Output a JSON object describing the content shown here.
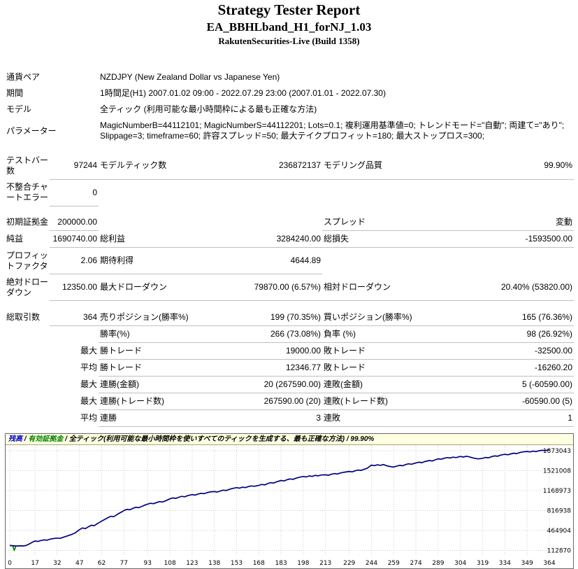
{
  "header": {
    "title": "Strategy Tester Report",
    "ea_name": "EA_BBHLband_H1_forNJ_1.03",
    "server_build": "RakutenSecurities-Live (Build 1358)"
  },
  "info": {
    "symbol": {
      "label": "通貨ペア",
      "value": "NZDJPY (New Zealand Dollar vs Japanese Yen)"
    },
    "period": {
      "label": "期間",
      "value": "1時間足(H1) 2007.01.02 09:00 - 2022.07.29 23:00 (2007.01.01 - 2022.07.30)"
    },
    "model": {
      "label": "モデル",
      "value": "全ティック (利用可能な最小時間枠による最も正確な方法)"
    },
    "parameters": {
      "label": "パラメーター",
      "value": "MagicNumberB=44112101; MagicNumberS=44112201; Lots=0.1; 複利運用基準値=0; トレンドモード=\"自動\"; 両建て=\"あり\"; Slippage=3; timeframe=60; 許容スプレッド=50; 最大テイクプロフィット=180; 最大ストップロス=300;"
    }
  },
  "stats": {
    "bars": {
      "label": "テストバー数",
      "value": "97244"
    },
    "ticks": {
      "label": "モデルティック数",
      "value": "236872137"
    },
    "quality": {
      "label": "モデリング品質",
      "value": "99.90%"
    },
    "mismatch": {
      "label": "不整合チャートエラー",
      "value": "0"
    },
    "deposit": {
      "label": "初期証拠金",
      "value": "200000.00"
    },
    "spread": {
      "label": "スプレッド",
      "value": "変動"
    },
    "net_profit": {
      "label": "純益",
      "value": "1690740.00"
    },
    "gross_profit": {
      "label": "総利益",
      "value": "3284240.00"
    },
    "gross_loss": {
      "label": "総損失",
      "value": "-1593500.00"
    },
    "profit_factor": {
      "label": "プロフィットファクタ",
      "value": "2.06"
    },
    "expected_payoff": {
      "label": "期待利得",
      "value": "4644.89"
    },
    "absolute_drawdown": {
      "label": "絶対ドローダウン",
      "value": "12350.00"
    },
    "maximal_drawdown": {
      "label": "最大ドローダウン",
      "value": "79870.00 (6.57%)"
    },
    "relative_drawdown": {
      "label": "相対ドローダウン",
      "value": "20.40% (53820.00)"
    },
    "total_trades": {
      "label": "総取引数",
      "value": "364"
    },
    "short_positions": {
      "label": "売りポジション(勝率%)",
      "value": "199 (70.35%)"
    },
    "long_positions": {
      "label": "買いポジション(勝率%)",
      "value": "165 (76.36%)"
    },
    "profit_trades": {
      "label": "勝率(%)",
      "value": "266 (73.08%)"
    },
    "loss_trades": {
      "label": "負率 (%)",
      "value": "98 (26.92%)"
    },
    "largest_label": "最大",
    "average_label": "平均",
    "largest_profit_trade": {
      "label": "勝トレード",
      "value": "19000.00"
    },
    "largest_loss_trade": {
      "label": "敗トレード",
      "value": "-32500.00"
    },
    "average_profit_trade": {
      "label": "勝トレード",
      "value": "12346.77"
    },
    "average_loss_trade": {
      "label": "敗トレード",
      "value": "-16260.20"
    },
    "max_consecutive_wins_money": {
      "label": "連勝(金額)",
      "value": "20 (267590.00)"
    },
    "max_consecutive_losses_money": {
      "label": "連敗(金額)",
      "value": "5 (-60590.00)"
    },
    "max_consecutive_wins_count": {
      "label": "連勝(トレード数)",
      "value": "267590.00 (20)"
    },
    "max_consecutive_losses_count": {
      "label": "連敗(トレード数)",
      "value": "-60590.00 (5)"
    },
    "avg_consecutive_wins": {
      "label": "連勝",
      "value": "3"
    },
    "avg_consecutive_losses": {
      "label": "連敗",
      "value": "1"
    }
  },
  "chart_data": {
    "type": "line",
    "legend": {
      "balance_label": "残高",
      "equity_label": "有効証拠金",
      "model_text": "全ティック(利用可能な最小時間枠を使いすべてのティックを生成する、最も正確な方法)",
      "quality": "99.90%",
      "separator": " / "
    },
    "xlim": [
      0,
      364
    ],
    "ylim": [
      112870,
      1873043
    ],
    "x_ticks": [
      0,
      17,
      32,
      47,
      62,
      77,
      93,
      108,
      123,
      138,
      153,
      168,
      183,
      198,
      213,
      229,
      244,
      259,
      274,
      289,
      304,
      319,
      334,
      349,
      364
    ],
    "y_ticks": [
      1873043,
      1521008,
      1168973,
      816938,
      464904,
      112870
    ],
    "grid_on": true,
    "grid_color": "#cdcdcd",
    "header_bg": "#ffffe1",
    "series": [
      {
        "id": "equity",
        "name": "有効証拠金",
        "color": "#008000",
        "points": [
          [
            0,
            200000
          ],
          [
            2,
            195000
          ],
          [
            3,
            112870
          ],
          [
            4,
            190000
          ],
          [
            6,
            196000
          ],
          [
            8,
            192000
          ]
        ]
      },
      {
        "id": "balance",
        "name": "残高",
        "color": "#000080",
        "points": [
          [
            0,
            200000
          ],
          [
            3,
            195000
          ],
          [
            5,
            190000
          ],
          [
            7,
            197000
          ],
          [
            9,
            192000
          ],
          [
            11,
            200000
          ],
          [
            13,
            225000
          ],
          [
            15,
            255000
          ],
          [
            17,
            280000
          ],
          [
            19,
            272000
          ],
          [
            21,
            288000
          ],
          [
            23,
            300000
          ],
          [
            25,
            293000
          ],
          [
            27,
            310000
          ],
          [
            29,
            322000
          ],
          [
            32,
            332000
          ],
          [
            34,
            326000
          ],
          [
            36,
            345000
          ],
          [
            38,
            362000
          ],
          [
            40,
            380000
          ],
          [
            42,
            398000
          ],
          [
            44,
            420000
          ],
          [
            47,
            480000
          ],
          [
            49,
            510000
          ],
          [
            51,
            498000
          ],
          [
            53,
            530000
          ],
          [
            55,
            558000
          ],
          [
            57,
            550000
          ],
          [
            59,
            585000
          ],
          [
            61,
            615000
          ],
          [
            62,
            632000
          ],
          [
            64,
            660000
          ],
          [
            66,
            688000
          ],
          [
            68,
            716000
          ],
          [
            70,
            708000
          ],
          [
            72,
            740000
          ],
          [
            74,
            772000
          ],
          [
            76,
            800000
          ],
          [
            77,
            818000
          ],
          [
            79,
            838000
          ],
          [
            81,
            830000
          ],
          [
            83,
            855000
          ],
          [
            85,
            875000
          ],
          [
            87,
            868000
          ],
          [
            89,
            890000
          ],
          [
            91,
            912000
          ],
          [
            93,
            930000
          ],
          [
            95,
            945000
          ],
          [
            97,
            938000
          ],
          [
            99,
            958000
          ],
          [
            101,
            975000
          ],
          [
            103,
            968000
          ],
          [
            105,
            988000
          ],
          [
            108,
            1025000
          ],
          [
            110,
            1040000
          ],
          [
            112,
            1032000
          ],
          [
            114,
            1052000
          ],
          [
            116,
            1068000
          ],
          [
            118,
            1060000
          ],
          [
            120,
            1080000
          ],
          [
            123,
            1098000
          ],
          [
            125,
            1090000
          ],
          [
            127,
            1108000
          ],
          [
            129,
            1122000
          ],
          [
            131,
            1115000
          ],
          [
            133,
            1132000
          ],
          [
            135,
            1145000
          ],
          [
            138,
            1152000
          ],
          [
            140,
            1144000
          ],
          [
            142,
            1162000
          ],
          [
            144,
            1178000
          ],
          [
            146,
            1170000
          ],
          [
            148,
            1190000
          ],
          [
            150,
            1205000
          ],
          [
            153,
            1222000
          ],
          [
            155,
            1212000
          ],
          [
            157,
            1230000
          ],
          [
            159,
            1222000
          ],
          [
            161,
            1240000
          ],
          [
            163,
            1252000
          ],
          [
            165,
            1245000
          ],
          [
            168,
            1262000
          ],
          [
            170,
            1278000
          ],
          [
            172,
            1270000
          ],
          [
            174,
            1292000
          ],
          [
            176,
            1310000
          ],
          [
            178,
            1302000
          ],
          [
            180,
            1325000
          ],
          [
            183,
            1348000
          ],
          [
            185,
            1340000
          ],
          [
            187,
            1360000
          ],
          [
            189,
            1375000
          ],
          [
            191,
            1368000
          ],
          [
            193,
            1388000
          ],
          [
            195,
            1402000
          ],
          [
            198,
            1418000
          ],
          [
            200,
            1410000
          ],
          [
            202,
            1428000
          ],
          [
            204,
            1420000
          ],
          [
            206,
            1438000
          ],
          [
            208,
            1430000
          ],
          [
            210,
            1445000
          ],
          [
            213,
            1448000
          ],
          [
            215,
            1440000
          ],
          [
            217,
            1458000
          ],
          [
            219,
            1470000
          ],
          [
            221,
            1462000
          ],
          [
            223,
            1480000
          ],
          [
            226,
            1495000
          ],
          [
            229,
            1508000
          ],
          [
            231,
            1500000
          ],
          [
            233,
            1518000
          ],
          [
            235,
            1532000
          ],
          [
            237,
            1525000
          ],
          [
            239,
            1545000
          ],
          [
            241,
            1562000
          ],
          [
            243,
            1600000
          ],
          [
            244,
            1618000
          ],
          [
            246,
            1610000
          ],
          [
            248,
            1625000
          ],
          [
            250,
            1615000
          ],
          [
            252,
            1630000
          ],
          [
            254,
            1610000
          ],
          [
            256,
            1596000
          ],
          [
            259,
            1585000
          ],
          [
            261,
            1600000
          ],
          [
            263,
            1615000
          ],
          [
            265,
            1608000
          ],
          [
            267,
            1628000
          ],
          [
            269,
            1642000
          ],
          [
            271,
            1635000
          ],
          [
            274,
            1658000
          ],
          [
            276,
            1670000
          ],
          [
            278,
            1662000
          ],
          [
            280,
            1682000
          ],
          [
            283,
            1700000
          ],
          [
            285,
            1692000
          ],
          [
            287,
            1712000
          ],
          [
            289,
            1730000
          ],
          [
            291,
            1722000
          ],
          [
            293,
            1740000
          ],
          [
            295,
            1752000
          ],
          [
            297,
            1745000
          ],
          [
            299,
            1760000
          ],
          [
            301,
            1752000
          ],
          [
            304,
            1772000
          ],
          [
            306,
            1762000
          ],
          [
            308,
            1775000
          ],
          [
            310,
            1765000
          ],
          [
            312,
            1748000
          ],
          [
            314,
            1738000
          ],
          [
            316,
            1728000
          ],
          [
            319,
            1740000
          ],
          [
            321,
            1755000
          ],
          [
            323,
            1748000
          ],
          [
            325,
            1768000
          ],
          [
            327,
            1782000
          ],
          [
            329,
            1775000
          ],
          [
            331,
            1795000
          ],
          [
            334,
            1810000
          ],
          [
            336,
            1802000
          ],
          [
            338,
            1818000
          ],
          [
            340,
            1830000
          ],
          [
            342,
            1822000
          ],
          [
            344,
            1840000
          ],
          [
            346,
            1852000
          ],
          [
            349,
            1860000
          ],
          [
            351,
            1852000
          ],
          [
            353,
            1866000
          ],
          [
            355,
            1858000
          ],
          [
            357,
            1872000
          ],
          [
            359,
            1880000
          ],
          [
            361,
            1874000
          ],
          [
            364,
            1890740
          ]
        ]
      }
    ]
  }
}
